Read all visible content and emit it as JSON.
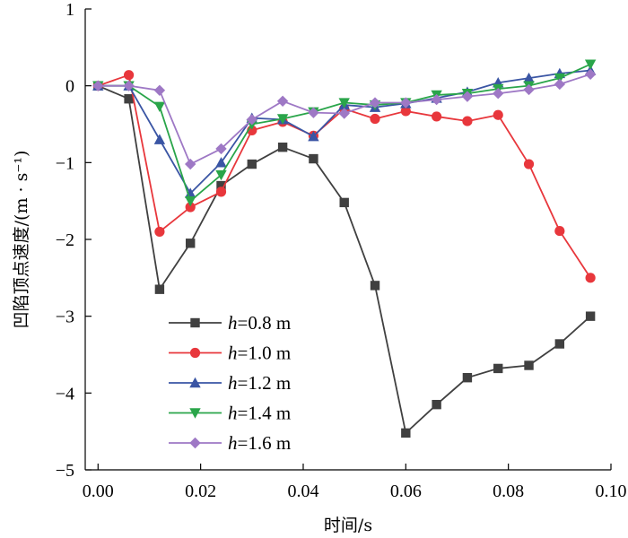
{
  "chart_data": {
    "type": "line",
    "xlabel": "时间/s",
    "ylabel": "凹陷顶点速度/(m · s⁻¹)",
    "xlim": [
      -0.0025,
      0.1
    ],
    "ylim": [
      -5,
      1
    ],
    "xticks": [
      0.0,
      0.02,
      0.04,
      0.06,
      0.08,
      0.1
    ],
    "xtick_labels": [
      "0.00",
      "0.02",
      "0.04",
      "0.06",
      "0.08",
      "0.10"
    ],
    "yticks": [
      1,
      0,
      -1,
      -2,
      -3,
      -4,
      -5
    ],
    "ytick_labels": [
      "1",
      "0",
      "−1",
      "−2",
      "−3",
      "−4",
      "−5"
    ],
    "legend_position": "bottom-left",
    "x": [
      0.0,
      0.006,
      0.012,
      0.018,
      0.024,
      0.03,
      0.036,
      0.042,
      0.048,
      0.054,
      0.06,
      0.066,
      0.072,
      0.078,
      0.084,
      0.09,
      0.096
    ],
    "series": [
      {
        "var": "h",
        "rest": "=0.8 m",
        "name": "h=0.8 m",
        "color": "#404040",
        "marker": "square",
        "values": [
          0.0,
          -0.17,
          -2.65,
          -2.05,
          -1.3,
          -1.02,
          -0.8,
          -0.95,
          -1.52,
          -2.6,
          -4.52,
          -4.15,
          -3.8,
          -3.68,
          -3.64,
          -3.36,
          -3.0
        ]
      },
      {
        "var": "h",
        "rest": "=1.0 m",
        "name": "h=1.0 m",
        "color": "#e8373c",
        "marker": "circle",
        "values": [
          0.0,
          0.14,
          -1.9,
          -1.58,
          -1.38,
          -0.58,
          -0.47,
          -0.65,
          -0.3,
          -0.43,
          -0.33,
          -0.4,
          -0.46,
          -0.38,
          -1.02,
          -1.89,
          -2.5
        ]
      },
      {
        "var": "h",
        "rest": "=1.2 m",
        "name": "h=1.2 m",
        "color": "#3a55a4",
        "marker": "triangle-up",
        "values": [
          0.0,
          0.0,
          -0.7,
          -1.4,
          -1.0,
          -0.42,
          -0.44,
          -0.66,
          -0.25,
          -0.28,
          -0.23,
          -0.16,
          -0.08,
          0.04,
          0.1,
          0.16,
          0.2
        ]
      },
      {
        "var": "h",
        "rest": "=1.4 m",
        "name": "h=1.4 m",
        "color": "#2aa54a",
        "marker": "triangle-down",
        "values": [
          0.0,
          0.0,
          -0.27,
          -1.5,
          -1.16,
          -0.5,
          -0.43,
          -0.34,
          -0.22,
          -0.25,
          -0.22,
          -0.12,
          -0.1,
          -0.04,
          0.0,
          0.1,
          0.28
        ]
      },
      {
        "var": "h",
        "rest": "=1.6 m",
        "name": "h=1.6 m",
        "color": "#9e78c5",
        "marker": "diamond",
        "values": [
          0.0,
          0.0,
          -0.06,
          -1.02,
          -0.82,
          -0.44,
          -0.2,
          -0.35,
          -0.36,
          -0.22,
          -0.22,
          -0.18,
          -0.14,
          -0.1,
          -0.05,
          0.02,
          0.15
        ]
      }
    ]
  }
}
